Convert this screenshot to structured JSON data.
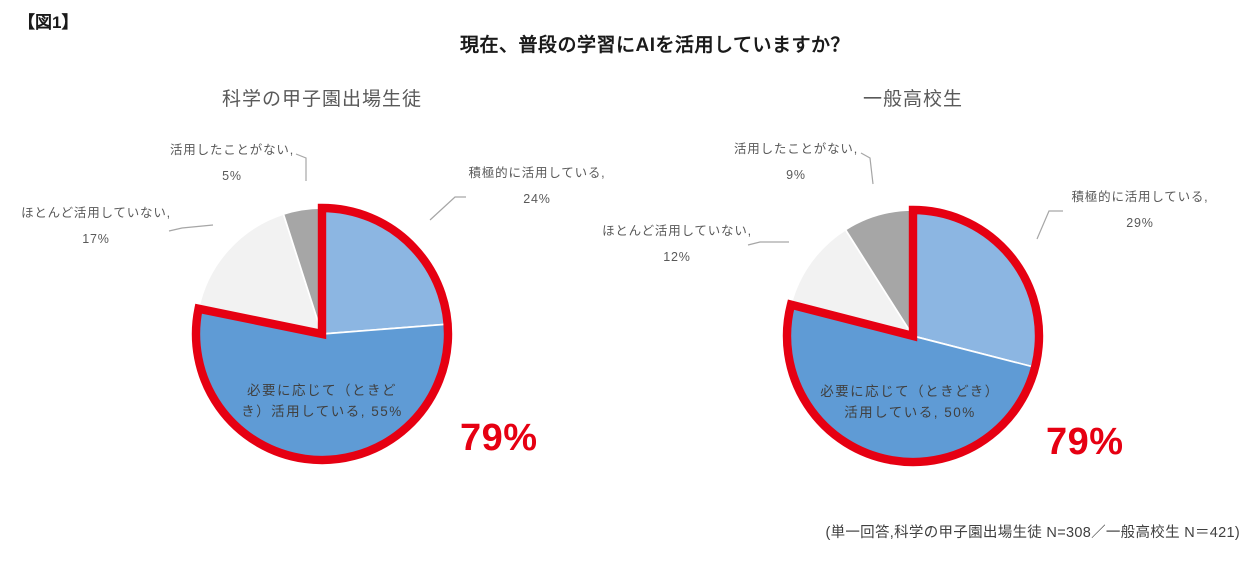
{
  "page": {
    "figure_tag": "【図1】",
    "title": "現在、普段の学習にAIを活用していますか？",
    "footnote": "(単一回答,科学の甲子園出場生徒 N=308／一般高校生 N＝421)"
  },
  "colors": {
    "slice_active": "#8CB6E2",
    "slice_sometimes": "#5F9BD5",
    "slice_rarely": "#F2F2F2",
    "slice_never": "#A6A6A6",
    "slice_divider": "#FFFFFF",
    "highlight_red": "#E60012",
    "label_gray": "#595959",
    "leader_gray": "#A6A6A6"
  },
  "chart_data": [
    {
      "type": "pie",
      "title": "科学の甲子園出場生徒",
      "sample_label": "N=308",
      "start_angle": "12-oclock",
      "direction": "clockwise",
      "unit": "%",
      "categories": [
        "積極的に活用している",
        "必要に応じて（ときどき）活用している",
        "ほとんど活用していない",
        "活用したことがない"
      ],
      "values": [
        24,
        55,
        17,
        5
      ],
      "highlight": {
        "label": "79%",
        "value": 79,
        "covers": [
          0,
          1
        ]
      },
      "callouts": {
        "active": {
          "line1": "積極的に活用している,",
          "line2": "24%"
        },
        "sometimes": {
          "line1": "必要に応じて（ときど",
          "line2": "き）活用している, 55%"
        },
        "rarely": {
          "line1": "ほとんど活用していない,",
          "line2": "17%"
        },
        "never": {
          "line1": "活用したことがない,",
          "line2": "5%"
        }
      }
    },
    {
      "type": "pie",
      "title": "一般高校生",
      "sample_label": "N＝421",
      "start_angle": "12-oclock",
      "direction": "clockwise",
      "unit": "%",
      "categories": [
        "積極的に活用している",
        "必要に応じて（ときどき）活用している",
        "ほとんど活用していない",
        "活用したことがない"
      ],
      "values": [
        29,
        50,
        12,
        9
      ],
      "highlight": {
        "label": "79%",
        "value": 79,
        "covers": [
          0,
          1
        ]
      },
      "callouts": {
        "active": {
          "line1": "積極的に活用している,",
          "line2": "29%"
        },
        "sometimes": {
          "line1": "必要に応じて（ときどき）",
          "line2": "活用している, 50%"
        },
        "rarely": {
          "line1": "ほとんど活用していない,",
          "line2": "12%"
        },
        "never": {
          "line1": "活用したことがない,",
          "line2": "9%"
        }
      }
    }
  ]
}
